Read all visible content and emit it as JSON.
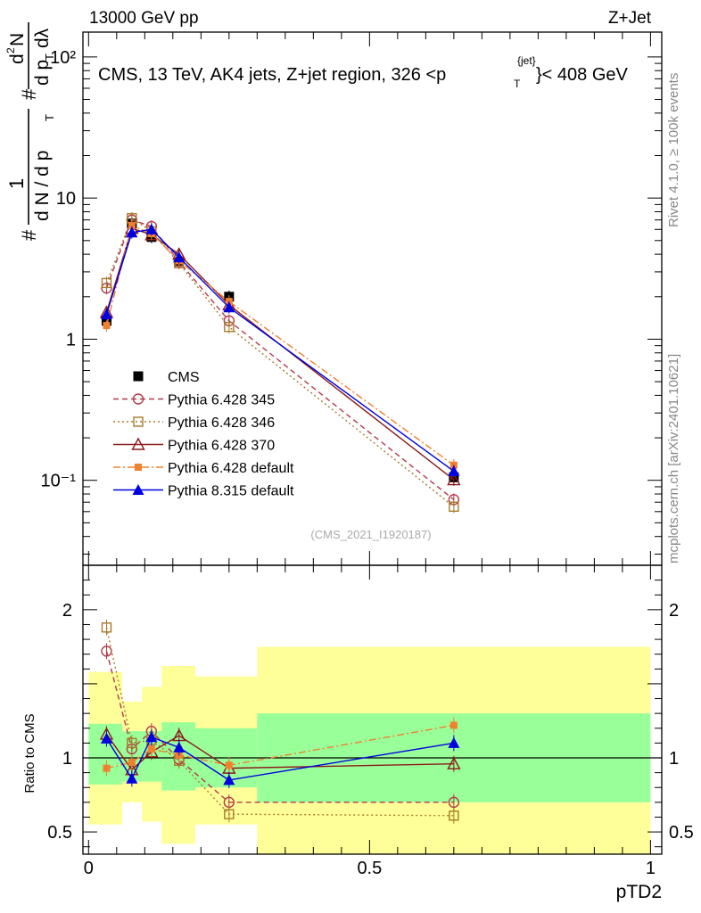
{
  "header": {
    "left": "13000 GeV pp",
    "right": "Z+Jet"
  },
  "title_line": "CMS, 13 TeV, AK4 jets, Z+jet region, 326 <p",
  "title_sub": "T",
  "title_sup": "{jet}",
  "title_tail": "}< 408 GeV",
  "ylabel_main": {
    "hash": "#",
    "one": "1",
    "dN": "d N / d p",
    "T": "T",
    "hash2": "#",
    "d2N": "d",
    "two": "2",
    "N": "N",
    "dpT": "d p",
    "T2": "T",
    "dlambda": "dλ"
  },
  "ylabel_ratio": "Ratio to CMS",
  "xlabel": "pTD2",
  "side_right_top": "Rivet 4.1.0, ≥ 100k events",
  "side_right_bottom": "mcplots.cern.ch [arXiv:2401.10621]",
  "watermark": "(CMS_2021_I1920187)",
  "colors": {
    "cms": "#000000",
    "p345": "#b33a4a",
    "p346": "#a87a2a",
    "p370": "#8b1a1a",
    "p6def": "#f08030",
    "p8def": "#0000e0",
    "band_inner": "#99ff99",
    "band_outer": "#ffff99"
  },
  "chart_data": {
    "type": "line",
    "x_axis": {
      "label": "pTD2",
      "range": [
        -0.01,
        1.02
      ],
      "ticks": [
        0,
        0.5,
        1
      ],
      "tick_labels": [
        "0",
        "0.5",
        "1"
      ]
    },
    "main": {
      "y_scale": "log",
      "y_range": [
        0.025,
        150
      ],
      "y_ticks": [
        0.1,
        1,
        10,
        100
      ],
      "y_tick_labels": [
        "10⁻¹",
        "1",
        "10",
        "10²"
      ]
    },
    "ratio": {
      "y_range": [
        0.35,
        2.3
      ],
      "y_ticks": [
        0.5,
        1,
        2
      ],
      "y_tick_labels": [
        "0.5",
        "1",
        "2"
      ]
    },
    "x": [
      0.032,
      0.077,
      0.112,
      0.161,
      0.25,
      0.65
    ],
    "bin_edges": [
      0.0,
      0.06,
      0.095,
      0.13,
      0.19,
      0.3,
      1.0
    ],
    "band_inner": [
      [
        0.82,
        1.23
      ],
      [
        0.84,
        1.18
      ],
      [
        0.84,
        1.18
      ],
      [
        0.78,
        1.24
      ],
      [
        0.8,
        1.2
      ],
      [
        0.7,
        1.3
      ]
    ],
    "band_outer": [
      [
        0.55,
        1.58
      ],
      [
        0.7,
        1.38
      ],
      [
        0.57,
        1.48
      ],
      [
        0.42,
        1.62
      ],
      [
        0.55,
        1.55
      ],
      [
        0.35,
        1.75
      ]
    ],
    "legend": [
      "CMS",
      "Pythia 6.428 345",
      "Pythia 6.428 346",
      "Pythia 6.428 370",
      "Pythia 6.428 default",
      "Pythia 8.315 default"
    ],
    "series": [
      {
        "name": "CMS",
        "key": "cms",
        "marker": "square-filled",
        "line": "none",
        "values": [
          1.35,
          6.6,
          5.3,
          3.55,
          2.0,
          0.105
        ],
        "ratio": [
          1,
          1,
          1,
          1,
          1,
          1
        ]
      },
      {
        "name": "Pythia 6.428 345",
        "key": "p345",
        "marker": "circle-open",
        "line": "dashed",
        "values": [
          2.3,
          7.0,
          6.3,
          3.55,
          1.35,
          0.073
        ],
        "ratio": [
          1.72,
          1.06,
          1.18,
          0.99,
          0.7,
          0.7
        ]
      },
      {
        "name": "Pythia 6.428 346",
        "key": "p346",
        "marker": "square-open",
        "line": "dotted",
        "values": [
          2.5,
          7.2,
          5.8,
          3.45,
          1.22,
          0.065
        ],
        "ratio": [
          1.88,
          1.1,
          1.12,
          0.98,
          0.62,
          0.61
        ]
      },
      {
        "name": "Pythia 6.428 370",
        "key": "p370",
        "marker": "triangle-open",
        "line": "solid",
        "values": [
          1.55,
          6.1,
          5.5,
          4.0,
          1.75,
          0.101
        ],
        "ratio": [
          1.16,
          0.92,
          1.04,
          1.15,
          0.93,
          0.96
        ]
      },
      {
        "name": "Pythia 6.428 default",
        "key": "p6def",
        "marker": "square-filled-small",
        "line": "dashdot",
        "values": [
          1.25,
          6.4,
          5.6,
          3.6,
          1.85,
          0.128
        ],
        "ratio": [
          0.93,
          0.97,
          1.06,
          1.02,
          0.95,
          1.22
        ]
      },
      {
        "name": "Pythia 8.315 default",
        "key": "p8def",
        "marker": "triangle-filled",
        "line": "solid",
        "values": [
          1.5,
          5.7,
          6.0,
          3.8,
          1.68,
          0.116
        ],
        "ratio": [
          1.13,
          0.86,
          1.14,
          1.07,
          0.85,
          1.1
        ]
      }
    ]
  }
}
